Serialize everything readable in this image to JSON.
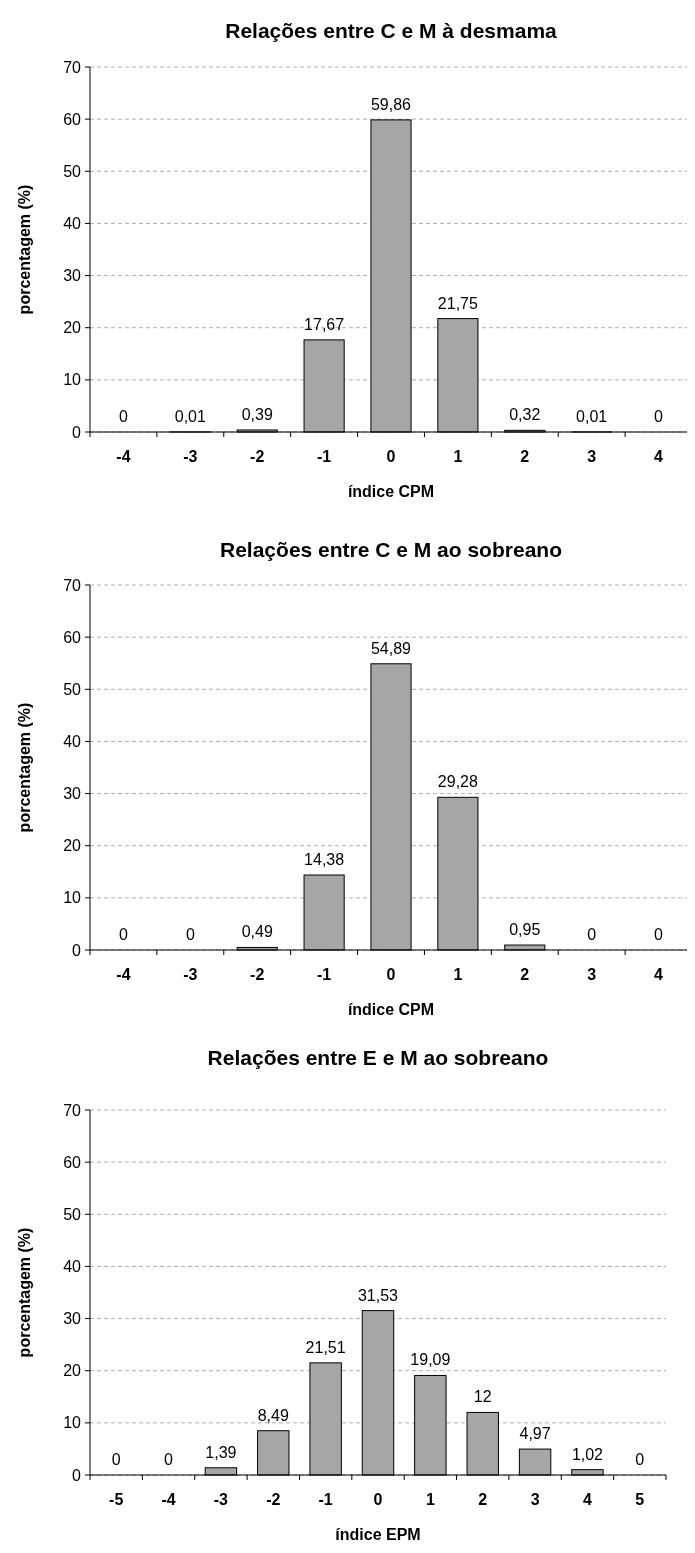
{
  "chart_data": [
    {
      "type": "bar",
      "title": "Relações entre C e M à desmama",
      "xlabel": "índice CPM",
      "ylabel": "porcentagem (%)",
      "categories": [
        "-4",
        "-3",
        "-2",
        "-1",
        "0",
        "1",
        "2",
        "3",
        "4"
      ],
      "values": [
        0,
        0.01,
        0.39,
        17.67,
        59.86,
        21.75,
        0.32,
        0.01,
        0
      ],
      "value_labels": [
        "0",
        "0,01",
        "0,39",
        "17,67",
        "59,86",
        "21,75",
        "0,32",
        "0,01",
        "0"
      ],
      "color": "#a6a6a6",
      "ylim": [
        0,
        70
      ],
      "yticks": [
        0,
        10,
        20,
        30,
        40,
        50,
        60,
        70
      ],
      "grid": "y"
    },
    {
      "type": "bar",
      "title": "Relações entre C e M ao sobreano",
      "xlabel": "índice CPM",
      "ylabel": "porcentagem (%)",
      "categories": [
        "-4",
        "-3",
        "-2",
        "-1",
        "0",
        "1",
        "2",
        "3",
        "4"
      ],
      "values": [
        0,
        0,
        0.49,
        14.38,
        54.89,
        29.28,
        0.95,
        0,
        0
      ],
      "value_labels": [
        "0",
        "0",
        "0,49",
        "14,38",
        "54,89",
        "29,28",
        "0,95",
        "0",
        "0"
      ],
      "color": "#a6a6a6",
      "ylim": [
        0,
        70
      ],
      "yticks": [
        0,
        10,
        20,
        30,
        40,
        50,
        60,
        70
      ],
      "grid": "y"
    },
    {
      "type": "bar",
      "title": "Relações entre E e M ao sobreano",
      "xlabel": "índice EPM",
      "ylabel": "porcentagem (%)",
      "categories": [
        "-5",
        "-4",
        "-3",
        "-2",
        "-1",
        "0",
        "1",
        "2",
        "3",
        "4",
        "5"
      ],
      "values": [
        0,
        0,
        1.39,
        8.49,
        21.51,
        31.53,
        19.09,
        12,
        4.97,
        1.02,
        0
      ],
      "value_labels": [
        "0",
        "0",
        "1,39",
        "8,49",
        "21,51",
        "31,53",
        "19,09",
        "12",
        "4,97",
        "1,02",
        "0"
      ],
      "color": "#a6a6a6",
      "ylim": [
        0,
        70
      ],
      "yticks": [
        0,
        10,
        20,
        30,
        40,
        50,
        60,
        70
      ],
      "grid": "y"
    }
  ]
}
